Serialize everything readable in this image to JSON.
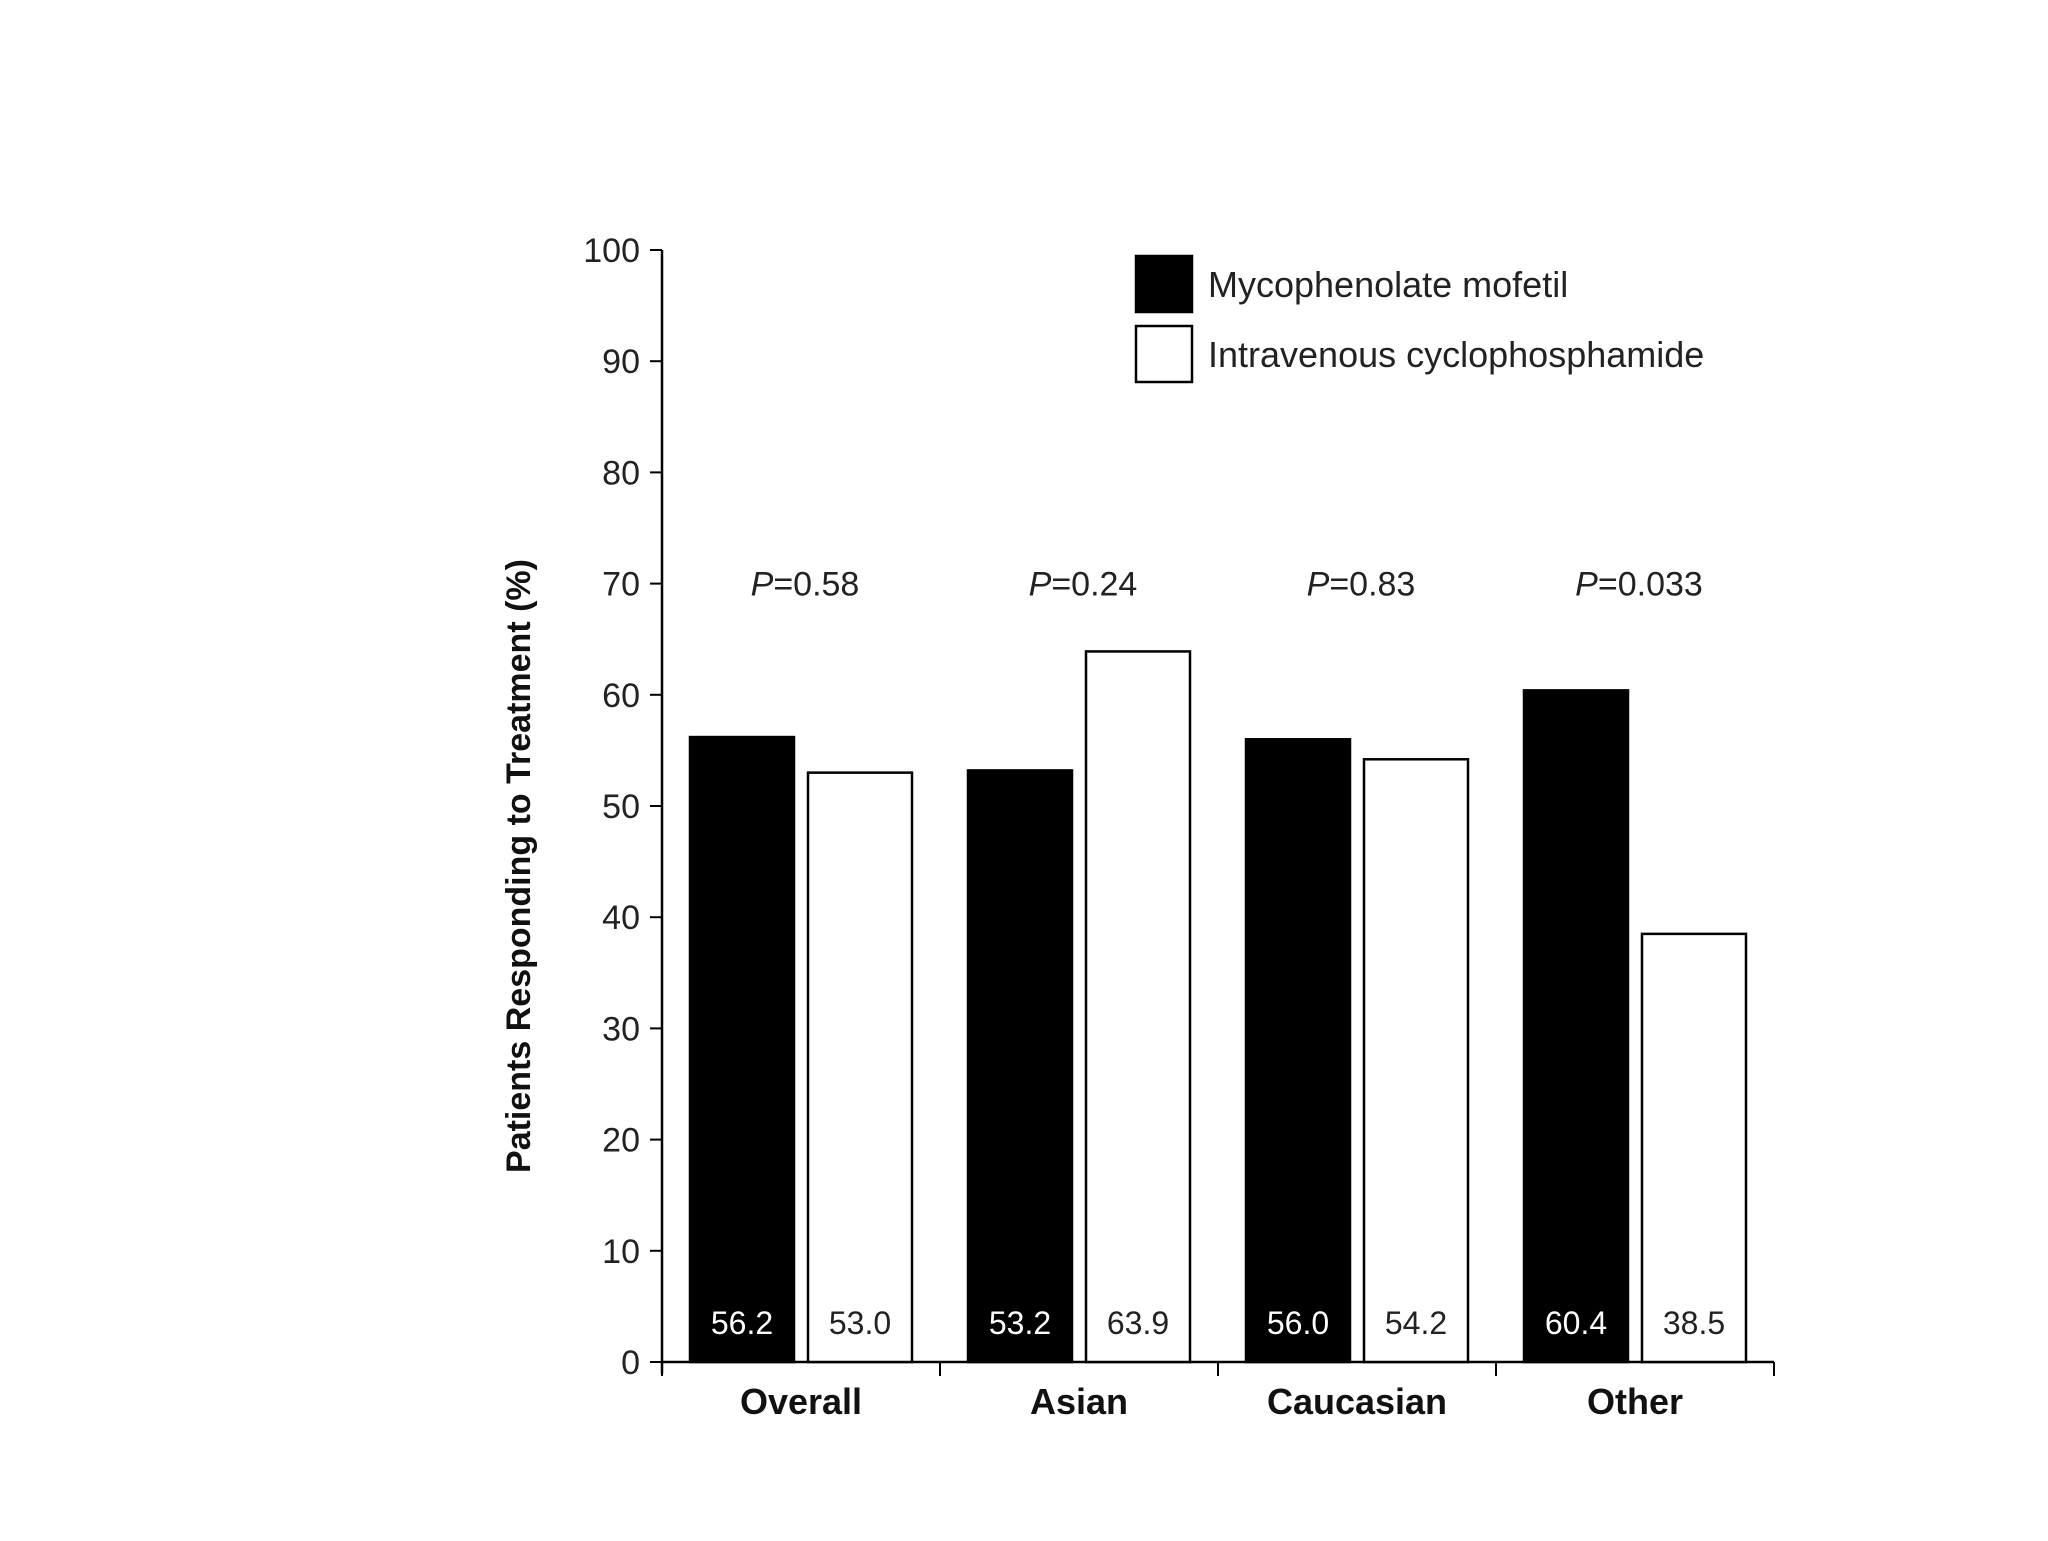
{
  "chart_data": {
    "type": "bar",
    "title": "",
    "ylabel": "Patients Responding to Treatment (%)",
    "xlabel": "",
    "ylim": [
      0,
      100
    ],
    "yticks": [
      0,
      10,
      20,
      30,
      40,
      50,
      60,
      70,
      80,
      90,
      100
    ],
    "ytick_labels": [
      "0",
      "10",
      "20",
      "30",
      "40",
      "50",
      "60",
      "70",
      "80",
      "90",
      "100"
    ],
    "categories": [
      "Overall",
      "Asian",
      "Caucasian",
      "Other"
    ],
    "series": [
      {
        "name": "Mycophenolate mofetil",
        "color": "#000000",
        "values": [
          56.2,
          53.2,
          56.0,
          60.4
        ],
        "value_labels": [
          "56.2",
          "53.2",
          "56.0",
          "60.4"
        ],
        "label_color": "#ffffff"
      },
      {
        "name": "Intravenous cyclophosphamide",
        "color": "#ffffff",
        "values": [
          53.0,
          63.9,
          54.2,
          38.5
        ],
        "value_labels": [
          "53.0",
          "63.9",
          "54.2",
          "38.5"
        ],
        "label_color": "#222222"
      }
    ],
    "p_values": [
      "0.58",
      "0.24",
      "0.83",
      "0.033"
    ],
    "p_prefix": "P",
    "legend_position": "top-right",
    "grid": false
  }
}
